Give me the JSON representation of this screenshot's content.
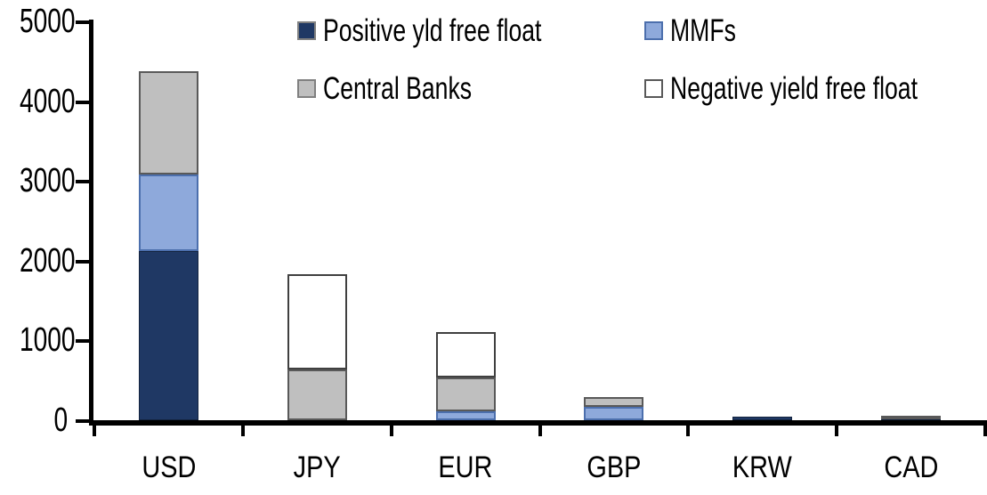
{
  "chart_data": {
    "type": "bar",
    "stacked": true,
    "title": "",
    "xlabel": "",
    "ylabel": "",
    "categories": [
      "USD",
      "JPY",
      "EUR",
      "GBP",
      "KRW",
      "CAD"
    ],
    "series": [
      {
        "name": "Positive yld free float",
        "values": [
          2120,
          0,
          0,
          0,
          40,
          25
        ],
        "fill": "#1F3864",
        "border": "#14243F",
        "legend_border": "#808080"
      },
      {
        "name": "MMFs",
        "values": [
          960,
          0,
          110,
          170,
          0,
          0
        ],
        "fill": "#8EA9DB",
        "border": "#4C6FAD",
        "legend_border": "#4C6FAD"
      },
      {
        "name": "Central Banks",
        "values": [
          1300,
          640,
          430,
          120,
          0,
          30
        ],
        "fill": "#BFBFBF",
        "border": "#595959",
        "legend_border": "#808080"
      },
      {
        "name": "Negative yield free float",
        "values": [
          0,
          1190,
          560,
          0,
          0,
          0
        ],
        "fill": "#FFFFFF",
        "border": "#404040",
        "legend_border": "#595959"
      }
    ],
    "ylim": [
      0,
      5000
    ],
    "yticks": [
      0,
      1000,
      2000,
      3000,
      4000,
      5000
    ],
    "grid": false,
    "legend_position": "top",
    "axis_color": "#000000",
    "background_color": "#FFFFFF",
    "totals": [
      4380,
      1830,
      1100,
      290,
      40,
      55
    ]
  }
}
